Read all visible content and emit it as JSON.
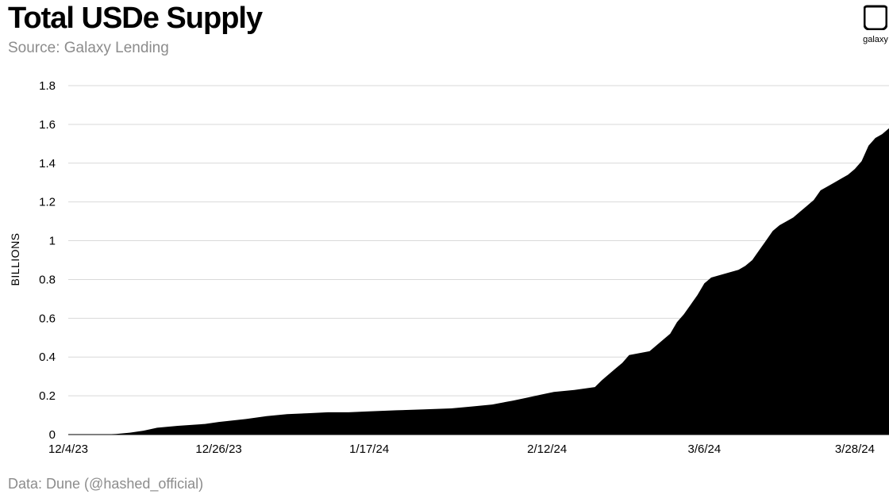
{
  "header": {
    "title": "Total USDe Supply",
    "subtitle": "Source: Galaxy Lending"
  },
  "footer": {
    "note": "Data: Dune (@hashed_official)"
  },
  "logo": {
    "text": "galaxy",
    "icon": "galaxy-logo-icon"
  },
  "colors": {
    "area": "#000000",
    "grid": "#d9d9d9",
    "muted": "#8c8c8c"
  },
  "chart_data": {
    "type": "area",
    "title": "Total USDe Supply",
    "xlabel": "",
    "ylabel": "BILLIONS",
    "ylim": [
      0,
      1.8
    ],
    "yticks": [
      "0",
      "0.2",
      "0.4",
      "0.6",
      "0.8",
      "1",
      "1.2",
      "1.4",
      "1.6",
      "1.8"
    ],
    "xticks": [
      {
        "label": "12/4/23",
        "date": "2023-12-04"
      },
      {
        "label": "12/26/23",
        "date": "2023-12-26"
      },
      {
        "label": "1/17/24",
        "date": "2024-01-17"
      },
      {
        "label": "2/12/24",
        "date": "2024-02-12"
      },
      {
        "label": "3/6/24",
        "date": "2024-03-06"
      },
      {
        "label": "3/28/24",
        "date": "2024-03-28"
      }
    ],
    "grid": true,
    "series": [
      {
        "values": [
          [
            "2023-12-04",
            0
          ],
          [
            "2023-12-09",
            0
          ],
          [
            "2023-12-11",
            0.003
          ],
          [
            "2023-12-13",
            0.01
          ],
          [
            "2023-12-15",
            0.02
          ],
          [
            "2023-12-17",
            0.035
          ],
          [
            "2023-12-20",
            0.045
          ],
          [
            "2023-12-24",
            0.055
          ],
          [
            "2023-12-26",
            0.065
          ],
          [
            "2023-12-30",
            0.08
          ],
          [
            "2024-01-02",
            0.095
          ],
          [
            "2024-01-05",
            0.105
          ],
          [
            "2024-01-08",
            0.11
          ],
          [
            "2024-01-11",
            0.115
          ],
          [
            "2024-01-14",
            0.115
          ],
          [
            "2024-01-17",
            0.12
          ],
          [
            "2024-01-21",
            0.125
          ],
          [
            "2024-01-25",
            0.13
          ],
          [
            "2024-01-29",
            0.135
          ],
          [
            "2024-02-01",
            0.145
          ],
          [
            "2024-02-04",
            0.155
          ],
          [
            "2024-02-07",
            0.175
          ],
          [
            "2024-02-09",
            0.19
          ],
          [
            "2024-02-11",
            0.205
          ],
          [
            "2024-02-13",
            0.22
          ],
          [
            "2024-02-16",
            0.23
          ],
          [
            "2024-02-19",
            0.245
          ],
          [
            "2024-02-20",
            0.28
          ],
          [
            "2024-02-22",
            0.34
          ],
          [
            "2024-02-23",
            0.37
          ],
          [
            "2024-02-24",
            0.41
          ],
          [
            "2024-02-27",
            0.43
          ],
          [
            "2024-02-29",
            0.49
          ],
          [
            "2024-03-01",
            0.52
          ],
          [
            "2024-03-02",
            0.58
          ],
          [
            "2024-03-03",
            0.62
          ],
          [
            "2024-03-04",
            0.67
          ],
          [
            "2024-03-05",
            0.72
          ],
          [
            "2024-03-06",
            0.78
          ],
          [
            "2024-03-07",
            0.81
          ],
          [
            "2024-03-09",
            0.83
          ],
          [
            "2024-03-11",
            0.85
          ],
          [
            "2024-03-12",
            0.87
          ],
          [
            "2024-03-13",
            0.9
          ],
          [
            "2024-03-14",
            0.95
          ],
          [
            "2024-03-15",
            1.0
          ],
          [
            "2024-03-16",
            1.05
          ],
          [
            "2024-03-17",
            1.08
          ],
          [
            "2024-03-18",
            1.1
          ],
          [
            "2024-03-19",
            1.12
          ],
          [
            "2024-03-20",
            1.15
          ],
          [
            "2024-03-21",
            1.18
          ],
          [
            "2024-03-22",
            1.21
          ],
          [
            "2024-03-23",
            1.26
          ],
          [
            "2024-03-24",
            1.28
          ],
          [
            "2024-03-25",
            1.3
          ],
          [
            "2024-03-26",
            1.32
          ],
          [
            "2024-03-27",
            1.34
          ],
          [
            "2024-03-28",
            1.37
          ],
          [
            "2024-03-29",
            1.41
          ],
          [
            "2024-03-30",
            1.49
          ],
          [
            "2024-03-31",
            1.53
          ],
          [
            "2024-04-01",
            1.55
          ],
          [
            "2024-04-02",
            1.58
          ]
        ]
      }
    ]
  }
}
